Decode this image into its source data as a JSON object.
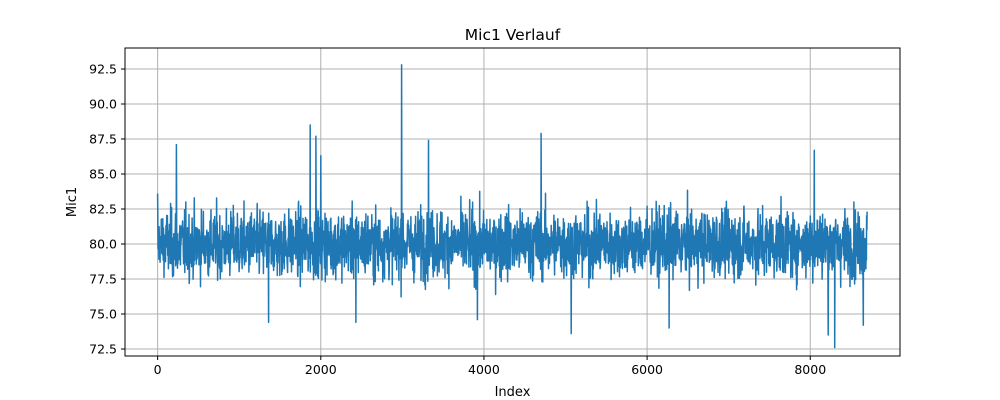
{
  "chart_data": {
    "type": "line",
    "title": "Mic1 Verlauf",
    "xlabel": "Index",
    "ylabel": "Mic1",
    "xlim": [
      -400,
      9100
    ],
    "ylim": [
      72.0,
      94.0
    ],
    "x_ticks": [
      0,
      2000,
      4000,
      6000,
      8000
    ],
    "x_tick_labels": [
      "0",
      "2000",
      "4000",
      "6000",
      "8000"
    ],
    "y_ticks": [
      72.5,
      75.0,
      77.5,
      80.0,
      82.5,
      85.0,
      87.5,
      90.0,
      92.5
    ],
    "y_tick_labels": [
      "72.5",
      "75.0",
      "77.5",
      "80.0",
      "82.5",
      "85.0",
      "87.5",
      "90.0",
      "92.5"
    ],
    "grid": true,
    "series": [
      {
        "color": "#1f77b4",
        "n_points": 8700,
        "baseline": 80.0,
        "typical_range": [
          76.0,
          84.5
        ],
        "overall_min": 72.6,
        "overall_max": 92.8,
        "notable_points": [
          {
            "x": 0,
            "y": 83.6
          },
          {
            "x": 30,
            "y": 78.7
          },
          {
            "x": 230,
            "y": 87.1
          },
          {
            "x": 1360,
            "y": 74.4
          },
          {
            "x": 1870,
            "y": 88.5
          },
          {
            "x": 1940,
            "y": 87.7
          },
          {
            "x": 2000,
            "y": 86.3
          },
          {
            "x": 2430,
            "y": 74.4
          },
          {
            "x": 2990,
            "y": 92.8
          },
          {
            "x": 3320,
            "y": 87.4
          },
          {
            "x": 3920,
            "y": 74.6
          },
          {
            "x": 4700,
            "y": 87.9
          },
          {
            "x": 5070,
            "y": 73.6
          },
          {
            "x": 6270,
            "y": 74.0
          },
          {
            "x": 8050,
            "y": 86.7
          },
          {
            "x": 8220,
            "y": 73.5
          },
          {
            "x": 8300,
            "y": 72.6
          },
          {
            "x": 8650,
            "y": 74.2
          },
          {
            "x": 8690,
            "y": 82.0
          }
        ]
      }
    ]
  }
}
